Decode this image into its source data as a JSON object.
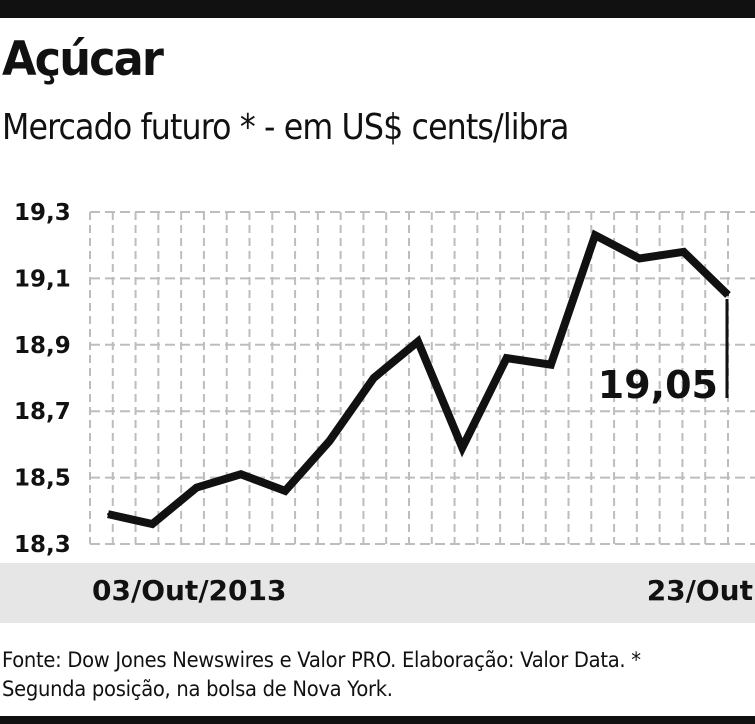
{
  "chart_data": {
    "type": "line",
    "title": "Açúcar",
    "subtitle": "Mercado futuro * - em US$ cents/libra",
    "x_start_label": "03/Out/2013",
    "x_end_label": "23/Out",
    "y_ticks": [
      "19,3",
      "19,1",
      "18,9",
      "18,7",
      "18,5",
      "18,3"
    ],
    "y_tick_values": [
      19.3,
      19.1,
      18.9,
      18.7,
      18.5,
      18.3
    ],
    "ylim": [
      18.3,
      19.3
    ],
    "grid": true,
    "series": [
      {
        "values": [
          18.39,
          18.36,
          18.47,
          18.51,
          18.46,
          18.61,
          18.8,
          18.91,
          18.59,
          18.86,
          18.84,
          19.23,
          19.16,
          19.18,
          19.05
        ]
      }
    ],
    "final_value_label": "19,05",
    "source": "Fonte: Dow Jones Newswires e Valor PRO. Elaboração: Valor Data. * Segunda posição, na bolsa de Nova York."
  }
}
